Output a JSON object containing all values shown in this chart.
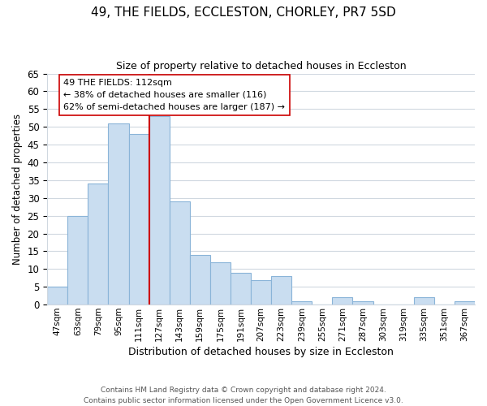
{
  "title": "49, THE FIELDS, ECCLESTON, CHORLEY, PR7 5SD",
  "subtitle": "Size of property relative to detached houses in Eccleston",
  "xlabel": "Distribution of detached houses by size in Eccleston",
  "ylabel": "Number of detached properties",
  "bar_labels": [
    "47sqm",
    "63sqm",
    "79sqm",
    "95sqm",
    "111sqm",
    "127sqm",
    "143sqm",
    "159sqm",
    "175sqm",
    "191sqm",
    "207sqm",
    "223sqm",
    "239sqm",
    "255sqm",
    "271sqm",
    "287sqm",
    "303sqm",
    "319sqm",
    "335sqm",
    "351sqm",
    "367sqm"
  ],
  "bar_values": [
    5,
    25,
    34,
    51,
    48,
    53,
    29,
    14,
    12,
    9,
    7,
    8,
    1,
    0,
    2,
    1,
    0,
    0,
    2,
    0,
    1
  ],
  "bar_color": "#c9ddf0",
  "bar_edge_color": "#8ab4d8",
  "vline_x": 4.5,
  "vline_color": "#cc0000",
  "annotation_text": "49 THE FIELDS: 112sqm\n← 38% of detached houses are smaller (116)\n62% of semi-detached houses are larger (187) →",
  "annotation_box_color": "white",
  "annotation_box_edge": "#cc0000",
  "ylim": [
    0,
    65
  ],
  "yticks": [
    0,
    5,
    10,
    15,
    20,
    25,
    30,
    35,
    40,
    45,
    50,
    55,
    60,
    65
  ],
  "footer_line1": "Contains HM Land Registry data © Crown copyright and database right 2024.",
  "footer_line2": "Contains public sector information licensed under the Open Government Licence v3.0.",
  "background_color": "#ffffff",
  "grid_color": "#d0d8e0"
}
